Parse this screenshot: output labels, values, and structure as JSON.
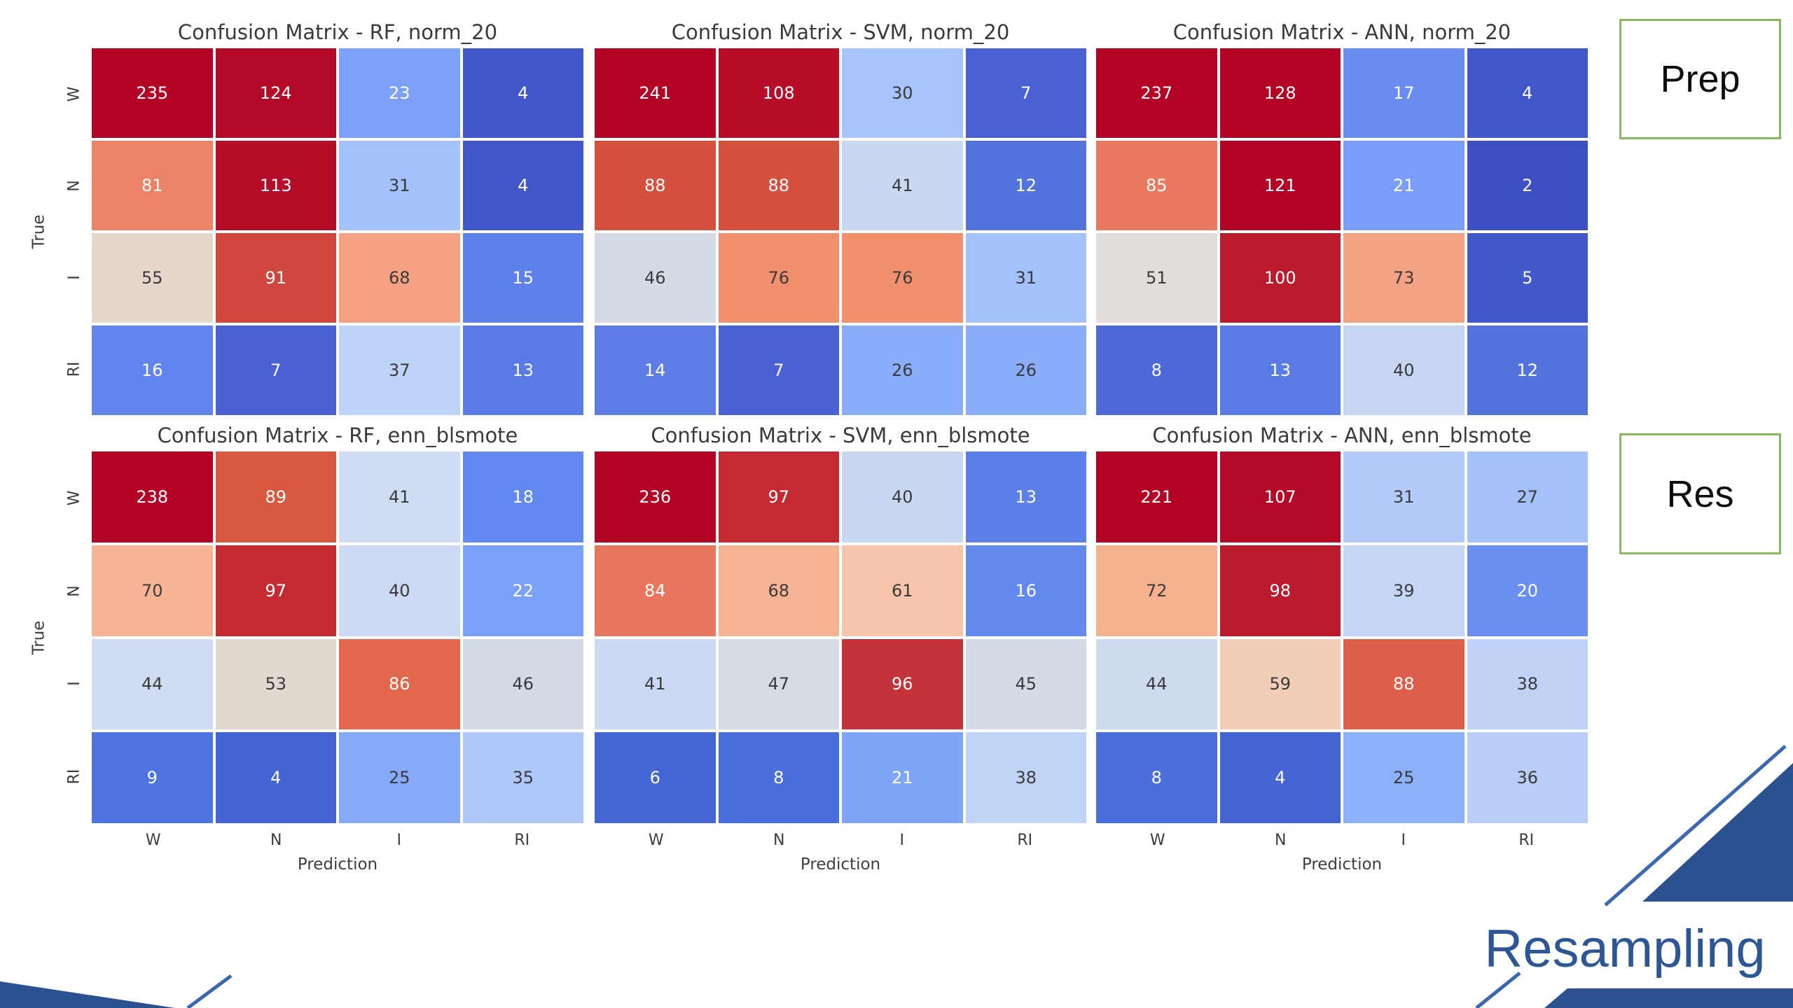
{
  "figure": {
    "xlabel": "Prediction",
    "ylabel": "True",
    "classes": [
      "W",
      "N",
      "I",
      "RI"
    ]
  },
  "slide": {
    "prep_label": "Prep",
    "res_label": "Res",
    "resampling_label": "Resampling"
  },
  "colors": {
    "navy_triangle": "#2b5190",
    "navy_line": "#3b67b0",
    "resampling_text": "#2d5695",
    "green_box_border": "#87ba5c",
    "title_text": "#3a3a3a",
    "cell_dark_text": "#3a3a3a",
    "cell_white_text": "#ffffff",
    "colormap": "coolwarm"
  },
  "chart_data": [
    {
      "type": "heatmap",
      "title": "Confusion Matrix - RF, norm_20",
      "x": [
        "W",
        "N",
        "I",
        "RI"
      ],
      "y": [
        "W",
        "N",
        "I",
        "RI"
      ],
      "values": [
        [
          235,
          124,
          23,
          4
        ],
        [
          81,
          113,
          31,
          4
        ],
        [
          55,
          91,
          68,
          15
        ],
        [
          16,
          7,
          37,
          13
        ]
      ],
      "colors": [
        [
          "#b40426",
          "#b50a27",
          "#7da0f8",
          "#4056c9"
        ],
        [
          "#ed8366",
          "#b60d28",
          "#a3c2fb",
          "#4056c9"
        ],
        [
          "#e5d8cb",
          "#d0473d",
          "#f5a283",
          "#5e80e9"
        ],
        [
          "#6185ec",
          "#4961d2",
          "#bed3f8",
          "#5a7ae6"
        ]
      ],
      "text": [
        "wwww",
        "wwdw",
        "dwdw",
        "wwdw"
      ]
    },
    {
      "type": "heatmap",
      "title": "Confusion Matrix - SVM, norm_20",
      "x": [
        "W",
        "N",
        "I",
        "RI"
      ],
      "y": [
        "W",
        "N",
        "I",
        "RI"
      ],
      "values": [
        [
          241,
          108,
          30,
          7
        ],
        [
          88,
          88,
          41,
          12
        ],
        [
          46,
          76,
          76,
          31
        ],
        [
          14,
          7,
          26,
          26
        ]
      ],
      "colors": [
        [
          "#b40426",
          "#b70d28",
          "#a7c4fb",
          "#4961d2"
        ],
        [
          "#d6503e",
          "#d6503e",
          "#c9d8f1",
          "#5373dd"
        ],
        [
          "#d4dbe6",
          "#f0906f",
          "#f0906f",
          "#a3c2fb"
        ],
        [
          "#5d7ce6",
          "#4961d2",
          "#8aadf9",
          "#8aadf9"
        ]
      ],
      "text": [
        "wwdw",
        "wwdw",
        "dddd",
        "wwdd"
      ]
    },
    {
      "type": "heatmap",
      "title": "Confusion Matrix - ANN, norm_20",
      "x": [
        "W",
        "N",
        "I",
        "RI"
      ],
      "y": [
        "W",
        "N",
        "I",
        "RI"
      ],
      "values": [
        [
          237,
          128,
          17,
          4
        ],
        [
          85,
          121,
          21,
          2
        ],
        [
          51,
          100,
          73,
          5
        ],
        [
          8,
          13,
          40,
          12
        ]
      ],
      "colors": [
        [
          "#b40426",
          "#b40426",
          "#6a8cf0",
          "#4056c9"
        ],
        [
          "#e97a5f",
          "#b40426",
          "#7a9ef7",
          "#3d50c3"
        ],
        [
          "#e0ddda",
          "#bb1b2c",
          "#f3a284",
          "#4259cb"
        ],
        [
          "#4d68d7",
          "#5a7ae6",
          "#c6d6f2",
          "#5373dd"
        ]
      ],
      "text": [
        "wwww",
        "wwww",
        "dwdw",
        "wwdw"
      ]
    },
    {
      "type": "heatmap",
      "title": "Confusion Matrix - RF, enn_blsmote",
      "x": [
        "W",
        "N",
        "I",
        "RI"
      ],
      "y": [
        "W",
        "N",
        "I",
        "RI"
      ],
      "values": [
        [
          238,
          89,
          41,
          18
        ],
        [
          70,
          97,
          40,
          22
        ],
        [
          44,
          53,
          86,
          46
        ],
        [
          9,
          4,
          25,
          35
        ]
      ],
      "colors": [
        [
          "#b40426",
          "#d8573f",
          "#cedcf4",
          "#6289ef"
        ],
        [
          "#f7b494",
          "#c32b31",
          "#ccdaf4",
          "#7aa1f7"
        ],
        [
          "#cfdcf1",
          "#e1d9cf",
          "#e2674c",
          "#d3dbe7"
        ],
        [
          "#4f74e0",
          "#4663d4",
          "#87aaf8",
          "#aec8fa"
        ]
      ],
      "text": [
        "wwdw",
        "dwdw",
        "ddwd",
        "wwdd"
      ]
    },
    {
      "type": "heatmap",
      "title": "Confusion Matrix - SVM, enn_blsmote",
      "x": [
        "W",
        "N",
        "I",
        "RI"
      ],
      "y": [
        "W",
        "N",
        "I",
        "RI"
      ],
      "values": [
        [
          236,
          97,
          40,
          13
        ],
        [
          84,
          68,
          61,
          16
        ],
        [
          41,
          47,
          96,
          45
        ],
        [
          6,
          8,
          21,
          38
        ]
      ],
      "colors": [
        [
          "#b40426",
          "#c32b31",
          "#c9d8f2",
          "#5b80e9"
        ],
        [
          "#e8765c",
          "#f6b391",
          "#f6c5ab",
          "#6189ee"
        ],
        [
          "#cbdaf2",
          "#d6dce4",
          "#c5333a",
          "#d3dbe7"
        ],
        [
          "#4366d4",
          "#4a6edb",
          "#7ea5f8",
          "#c0d4f7"
        ]
      ],
      "text": [
        "wwdw",
        "wddw",
        "ddwd",
        "wwwd"
      ]
    },
    {
      "type": "heatmap",
      "title": "Confusion Matrix - ANN, enn_blsmote",
      "x": [
        "W",
        "N",
        "I",
        "RI"
      ],
      "y": [
        "W",
        "N",
        "I",
        "RI"
      ],
      "values": [
        [
          221,
          107,
          31,
          27
        ],
        [
          72,
          98,
          39,
          20
        ],
        [
          44,
          59,
          88,
          38
        ],
        [
          8,
          4,
          25,
          36
        ]
      ],
      "colors": [
        [
          "#b40426",
          "#b50a27",
          "#b2cbfa",
          "#a4c2f9"
        ],
        [
          "#f6b28f",
          "#bb1b2c",
          "#c4d6f6",
          "#6990f1"
        ],
        [
          "#cedbef",
          "#f2ceb9",
          "#dd5f4b",
          "#c0d3f6"
        ],
        [
          "#4a6edb",
          "#4663d4",
          "#8db1f9",
          "#b9cef7"
        ]
      ],
      "text": [
        "wwdd",
        "dwdw",
        "ddwd",
        "wwdd"
      ]
    }
  ]
}
